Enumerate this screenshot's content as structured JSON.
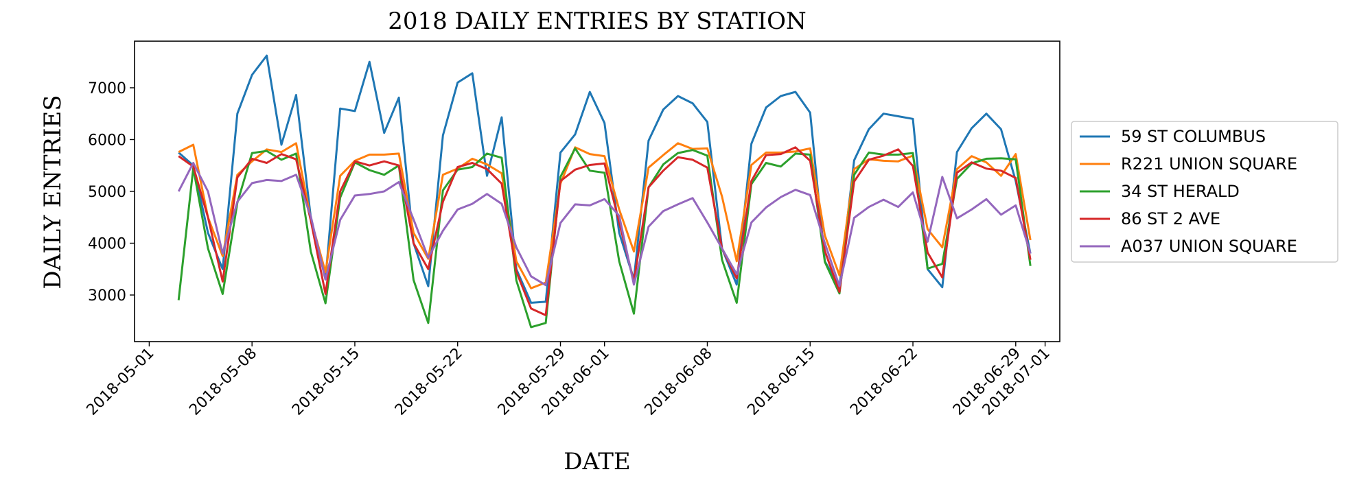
{
  "chart_data": {
    "type": "line",
    "title": "2018 DAILY ENTRIES BY STATION",
    "xlabel": "DATE",
    "ylabel": "DAILY ENTRIES",
    "xlim": [
      "2018-04-30",
      "2018-07-02"
    ],
    "ylim": [
      2100,
      7900
    ],
    "x_ticks": [
      "2018-05-01",
      "2018-05-08",
      "2018-05-15",
      "2018-05-22",
      "2018-05-29",
      "2018-06-01",
      "2018-06-08",
      "2018-06-15",
      "2018-06-22",
      "2018-06-29",
      "2018-07-01"
    ],
    "y_ticks": [
      3000,
      4000,
      5000,
      6000,
      7000
    ],
    "legend_position": "right-outside",
    "grid": false,
    "x": [
      "2018-05-03",
      "2018-05-04",
      "2018-05-05",
      "2018-05-06",
      "2018-05-07",
      "2018-05-08",
      "2018-05-09",
      "2018-05-10",
      "2018-05-11",
      "2018-05-12",
      "2018-05-13",
      "2018-05-14",
      "2018-05-15",
      "2018-05-16",
      "2018-05-17",
      "2018-05-18",
      "2018-05-19",
      "2018-05-20",
      "2018-05-21",
      "2018-05-22",
      "2018-05-23",
      "2018-05-24",
      "2018-05-25",
      "2018-05-26",
      "2018-05-27",
      "2018-05-28",
      "2018-05-29",
      "2018-05-30",
      "2018-05-31",
      "2018-06-01",
      "2018-06-02",
      "2018-06-03",
      "2018-06-04",
      "2018-06-05",
      "2018-06-06",
      "2018-06-07",
      "2018-06-08",
      "2018-06-09",
      "2018-06-10",
      "2018-06-11",
      "2018-06-12",
      "2018-06-13",
      "2018-06-14",
      "2018-06-15",
      "2018-06-16",
      "2018-06-17",
      "2018-06-18",
      "2018-06-19",
      "2018-06-20",
      "2018-06-21",
      "2018-06-22",
      "2018-06-23",
      "2018-06-24",
      "2018-06-25",
      "2018-06-26",
      "2018-06-27",
      "2018-06-28",
      "2018-06-29",
      "2018-06-30"
    ],
    "series": [
      {
        "name": "59 ST COLUMBUS",
        "color": "#1f77b4",
        "values": [
          5750,
          5500,
          4200,
          3500,
          6500,
          7250,
          7620,
          5900,
          6860,
          4500,
          3300,
          6600,
          6550,
          7500,
          6130,
          6810,
          4000,
          3170,
          6080,
          7100,
          7280,
          5300,
          6430,
          3500,
          2850,
          2870,
          5750,
          6100,
          6920,
          6320,
          4200,
          3300,
          5980,
          6580,
          6840,
          6700,
          6340,
          3900,
          3200,
          5920,
          6620,
          6840,
          6920,
          6520,
          3650,
          3150,
          5600,
          6200,
          6500,
          6450,
          6400,
          3500,
          3150,
          5760,
          6220,
          6500,
          6200,
          5200,
          3800
        ]
      },
      {
        "name": "R221 UNION SQUARE",
        "color": "#ff7f0e",
        "values": [
          5760,
          5900,
          4500,
          3750,
          5320,
          5580,
          5810,
          5760,
          5930,
          4470,
          3440,
          5300,
          5590,
          5710,
          5710,
          5730,
          4200,
          3700,
          5320,
          5440,
          5630,
          5520,
          5350,
          3650,
          3130,
          3240,
          5150,
          5850,
          5720,
          5680,
          4650,
          3840,
          5460,
          5700,
          5930,
          5820,
          5830,
          4900,
          3650,
          5510,
          5750,
          5750,
          5770,
          5830,
          4150,
          3380,
          5430,
          5620,
          5590,
          5580,
          5690,
          4270,
          3920,
          5430,
          5680,
          5560,
          5300,
          5720,
          4060
        ]
      },
      {
        "name": "34 ST HERALD",
        "color": "#2ca02c",
        "values": [
          2900,
          5450,
          3900,
          3020,
          4780,
          5740,
          5780,
          5610,
          5730,
          3840,
          2840,
          4880,
          5560,
          5410,
          5320,
          5500,
          3290,
          2460,
          5020,
          5420,
          5470,
          5730,
          5650,
          3280,
          2380,
          2460,
          5280,
          5830,
          5400,
          5360,
          3650,
          2640,
          5080,
          5520,
          5740,
          5800,
          5690,
          3680,
          2850,
          5140,
          5550,
          5480,
          5730,
          5710,
          3640,
          3030,
          5320,
          5750,
          5710,
          5710,
          5740,
          3510,
          3600,
          5240,
          5540,
          5630,
          5640,
          5620,
          3560
        ]
      },
      {
        "name": "86 ST 2 AVE",
        "color": "#d62728",
        "values": [
          5680,
          5480,
          4500,
          3260,
          5270,
          5630,
          5550,
          5720,
          5620,
          4440,
          3020,
          5000,
          5580,
          5500,
          5580,
          5500,
          4000,
          3500,
          4800,
          5470,
          5550,
          5430,
          5150,
          3450,
          2740,
          2610,
          5200,
          5420,
          5510,
          5540,
          4400,
          3260,
          5080,
          5400,
          5660,
          5610,
          5460,
          3900,
          3320,
          5200,
          5700,
          5720,
          5850,
          5590,
          3850,
          3060,
          5190,
          5610,
          5690,
          5810,
          5490,
          3820,
          3340,
          5360,
          5560,
          5440,
          5400,
          5260,
          3680
        ]
      },
      {
        "name": "A037 UNION SQUARE",
        "color": "#9467bd",
        "values": [
          5000,
          5550,
          5000,
          3800,
          4800,
          5160,
          5220,
          5200,
          5320,
          4520,
          3300,
          4450,
          4920,
          4950,
          5000,
          5180,
          4460,
          3720,
          4240,
          4650,
          4760,
          4950,
          4760,
          3920,
          3360,
          3190,
          4390,
          4750,
          4730,
          4850,
          4530,
          3200,
          4320,
          4620,
          4750,
          4870,
          4400,
          3900,
          3400,
          4400,
          4690,
          4890,
          5030,
          4930,
          4000,
          3170,
          4490,
          4700,
          4840,
          4700,
          4980,
          4030,
          5280,
          4480,
          4650,
          4850,
          4550,
          4730,
          3800
        ]
      }
    ]
  }
}
